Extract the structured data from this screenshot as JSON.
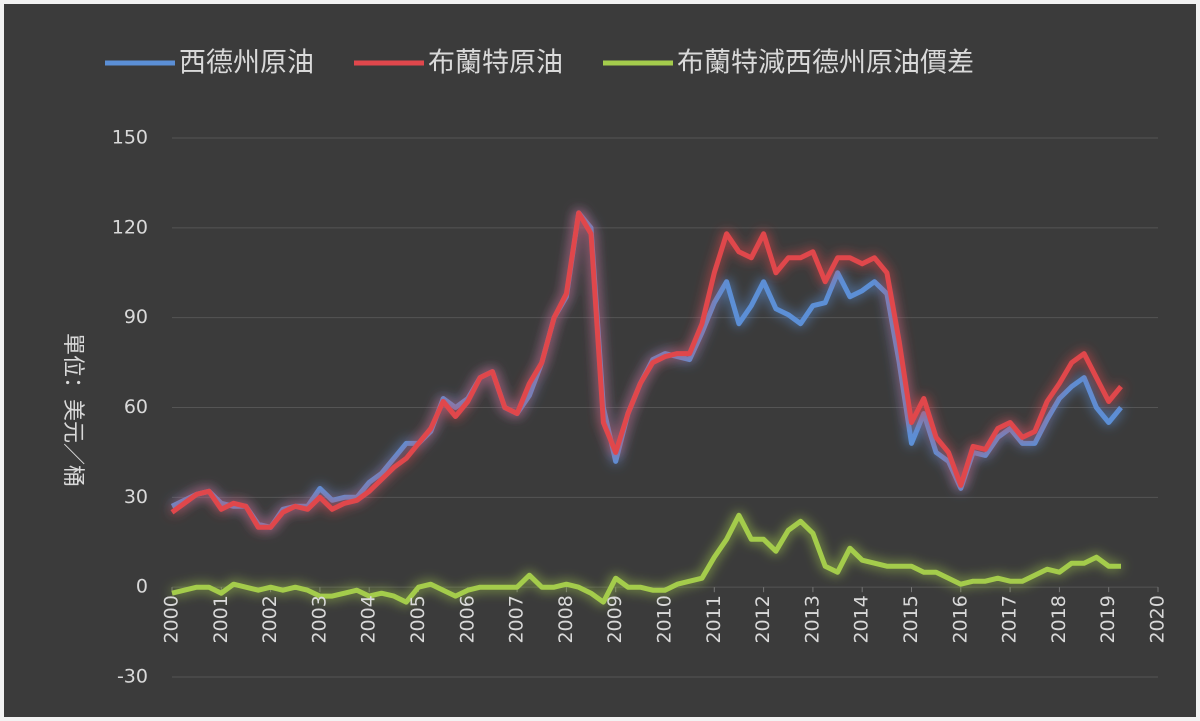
{
  "chart_data": {
    "type": "line",
    "y_label": "單位：美元／桶",
    "x": [
      2000,
      2000.25,
      2000.5,
      2000.75,
      2001,
      2001.25,
      2001.5,
      2001.75,
      2002,
      2002.25,
      2002.5,
      2002.75,
      2003,
      2003.25,
      2003.5,
      2003.75,
      2004,
      2004.25,
      2004.5,
      2004.75,
      2005,
      2005.25,
      2005.5,
      2005.75,
      2006,
      2006.25,
      2006.5,
      2006.75,
      2007,
      2007.25,
      2007.5,
      2007.75,
      2008,
      2008.25,
      2008.5,
      2008.75,
      2009,
      2009.25,
      2009.5,
      2009.75,
      2010,
      2010.25,
      2010.5,
      2010.75,
      2011,
      2011.25,
      2011.5,
      2011.75,
      2012,
      2012.25,
      2012.5,
      2012.75,
      2013,
      2013.25,
      2013.5,
      2013.75,
      2014,
      2014.25,
      2014.5,
      2014.75,
      2015,
      2015.25,
      2015.5,
      2015.75,
      2016,
      2016.25,
      2016.5,
      2016.75,
      2017,
      2017.25,
      2017.5,
      2017.75,
      2018,
      2018.25,
      2018.5,
      2018.75,
      2019,
      2019.25
    ],
    "series": [
      {
        "name": "西德州原油",
        "color": "#5b8fd6",
        "values": [
          27,
          29,
          31,
          32,
          28,
          27,
          27,
          21,
          20,
          26,
          27,
          27,
          33,
          29,
          30,
          30,
          35,
          38,
          43,
          48,
          48,
          52,
          63,
          60,
          63,
          70,
          72,
          60,
          58,
          64,
          75,
          90,
          97,
          125,
          120,
          60,
          42,
          58,
          68,
          76,
          78,
          77,
          76,
          85,
          95,
          102,
          88,
          94,
          102,
          93,
          91,
          88,
          94,
          95,
          105,
          97,
          99,
          102,
          98,
          75,
          48,
          58,
          45,
          42,
          33,
          45,
          44,
          50,
          53,
          48,
          48,
          56,
          63,
          67,
          70,
          60,
          55,
          60
        ]
      },
      {
        "name": "布蘭特原油",
        "color": "#e0474c",
        "values": [
          25,
          28,
          31,
          32,
          26,
          28,
          27,
          20,
          20,
          25,
          27,
          26,
          30,
          26,
          28,
          29,
          32,
          36,
          40,
          43,
          48,
          53,
          62,
          57,
          62,
          70,
          72,
          60,
          58,
          68,
          75,
          90,
          98,
          125,
          118,
          55,
          45,
          58,
          68,
          75,
          77,
          78,
          78,
          88,
          105,
          118,
          112,
          110,
          118,
          105,
          110,
          110,
          112,
          102,
          110,
          110,
          108,
          110,
          105,
          82,
          55,
          63,
          50,
          45,
          34,
          47,
          46,
          53,
          55,
          50,
          52,
          62,
          68,
          75,
          78,
          70,
          62,
          67
        ]
      },
      {
        "name": "布蘭特減西德州原油價差",
        "color": "#a4cc4c",
        "values": [
          -2,
          -1,
          0,
          0,
          -2,
          1,
          0,
          -1,
          0,
          -1,
          0,
          -1,
          -3,
          -3,
          -2,
          -1,
          -3,
          -2,
          -3,
          -5,
          0,
          1,
          -1,
          -3,
          -1,
          0,
          0,
          0,
          0,
          4,
          0,
          0,
          1,
          0,
          -2,
          -5,
          3,
          0,
          0,
          -1,
          -1,
          1,
          2,
          3,
          10,
          16,
          24,
          16,
          16,
          12,
          19,
          22,
          18,
          7,
          5,
          13,
          9,
          8,
          7,
          7,
          7,
          5,
          5,
          3,
          1,
          2,
          2,
          3,
          2,
          2,
          4,
          6,
          5,
          8,
          8,
          10,
          7,
          7
        ]
      }
    ],
    "xlim": [
      2000,
      2020
    ],
    "xticks": [
      2000,
      2001,
      2002,
      2003,
      2004,
      2005,
      2006,
      2007,
      2008,
      2009,
      2010,
      2011,
      2012,
      2013,
      2014,
      2015,
      2016,
      2017,
      2018,
      2019,
      2020
    ],
    "ylim": [
      -30,
      150
    ],
    "yticks": [
      -30,
      0,
      30,
      60,
      90,
      120,
      150
    ],
    "grid": true,
    "legend": "top"
  }
}
